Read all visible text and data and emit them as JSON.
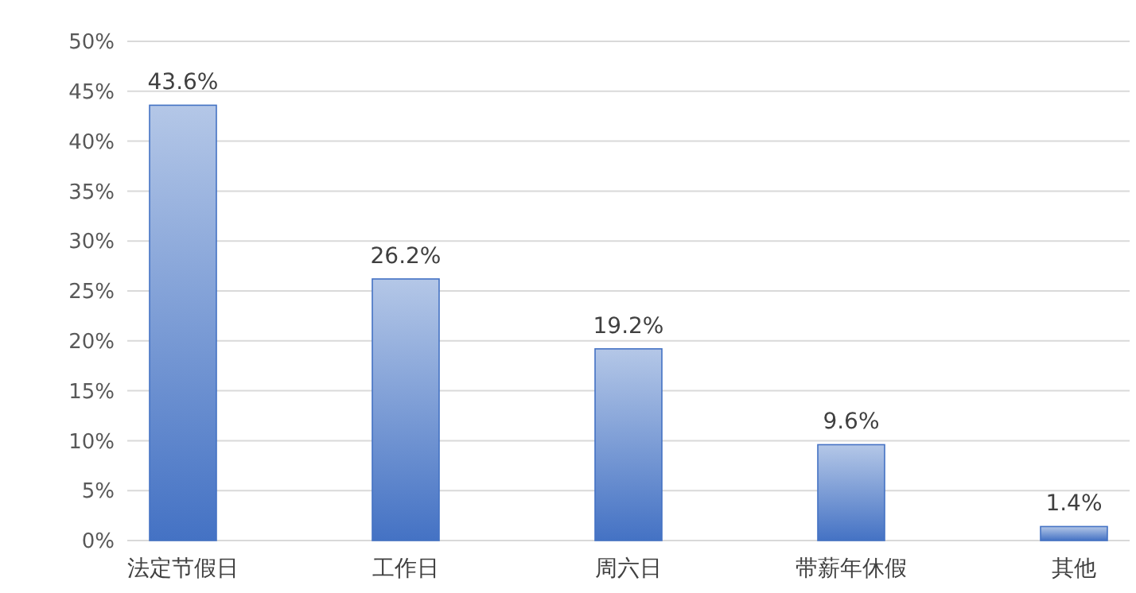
{
  "chart_data": {
    "type": "bar",
    "categories": [
      "法定节假日",
      "工作日",
      "周六日",
      "带薪年休假",
      "其他"
    ],
    "values": [
      43.6,
      26.2,
      19.2,
      9.6,
      1.4
    ],
    "value_labels": [
      "43.6%",
      "26.2%",
      "19.2%",
      "9.6%",
      "1.4%"
    ],
    "color": "#4472c4",
    "ylim": [
      0,
      50
    ],
    "yticks": [
      {
        "value": 0,
        "label": "0%"
      },
      {
        "value": 5,
        "label": "5%"
      },
      {
        "value": 10,
        "label": "10%"
      },
      {
        "value": 15,
        "label": "15%"
      },
      {
        "value": 20,
        "label": "20%"
      },
      {
        "value": 25,
        "label": "25%"
      },
      {
        "value": 30,
        "label": "30%"
      },
      {
        "value": 35,
        "label": "35%"
      },
      {
        "value": 40,
        "label": "40%"
      },
      {
        "value": 45,
        "label": "45%"
      },
      {
        "value": 50,
        "label": "50%"
      }
    ],
    "grid": "y"
  }
}
